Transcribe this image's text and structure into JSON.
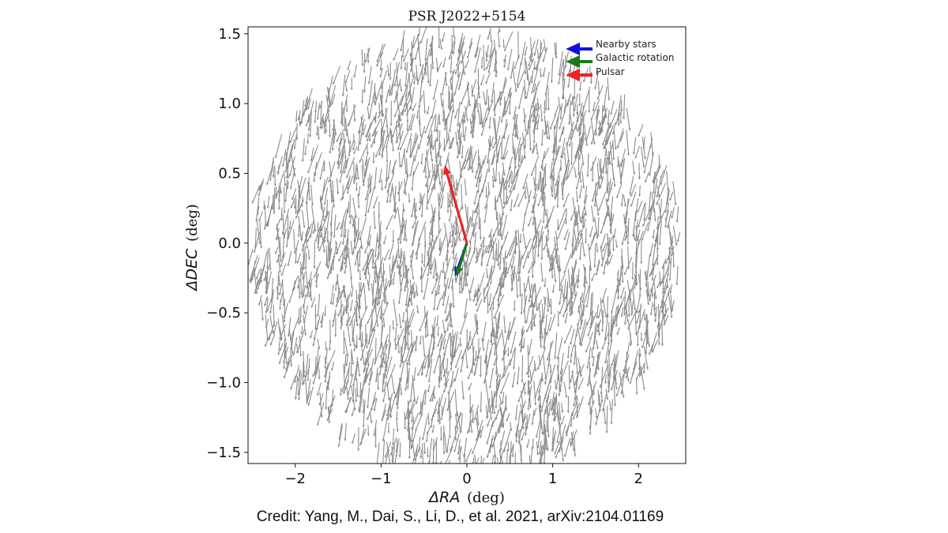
{
  "chart_data": {
    "type": "quiver",
    "title": "PSR J2022+5154",
    "xlabel_symbol": "ΔRA",
    "xlabel_unit": "(deg)",
    "ylabel_symbol": "ΔDEC",
    "ylabel_unit": "(deg)",
    "xlim": [
      -2.55,
      2.55
    ],
    "ylim": [
      -1.58,
      1.55
    ],
    "xticks": [
      -2,
      -1,
      0,
      1,
      2
    ],
    "xtick_labels": [
      "−2",
      "−1",
      "0",
      "1",
      "2"
    ],
    "yticks": [
      1.5,
      1.0,
      0.5,
      0.0,
      -0.5,
      -1.0,
      -1.5
    ],
    "ytick_labels": [
      "1.5",
      "1.0",
      "0.5",
      "0.0",
      "−0.5",
      "−1.0",
      "−1.5"
    ],
    "grid": false,
    "legend_position": "top-right",
    "series": [
      {
        "name": "Nearby stars",
        "color": "#1111dd",
        "vectors": [
          {
            "x0": 0.0,
            "y0": 0.0,
            "x1": -0.14,
            "y1": -0.24
          }
        ]
      },
      {
        "name": "Galactic rotation",
        "color": "#1a7a1a",
        "vectors": [
          {
            "x0": 0.0,
            "y0": 0.0,
            "x1": -0.12,
            "y1": -0.24
          }
        ]
      },
      {
        "name": "Pulsar",
        "color": "#ee2222",
        "vectors": [
          {
            "x0": 0.0,
            "y0": 0.0,
            "x1": -0.26,
            "y1": 0.56
          }
        ]
      }
    ],
    "field_stars": {
      "color": "#8c8c8c",
      "region": "circle centered at origin, radius ≈ 2.5 deg",
      "typical_direction": "mostly downward / south, slightly to the left",
      "typical_length_deg": 0.12
    }
  },
  "credit": "Credit: Yang, M., Dai, S., Li, D., et al. 2021, arXiv:2104.01169"
}
